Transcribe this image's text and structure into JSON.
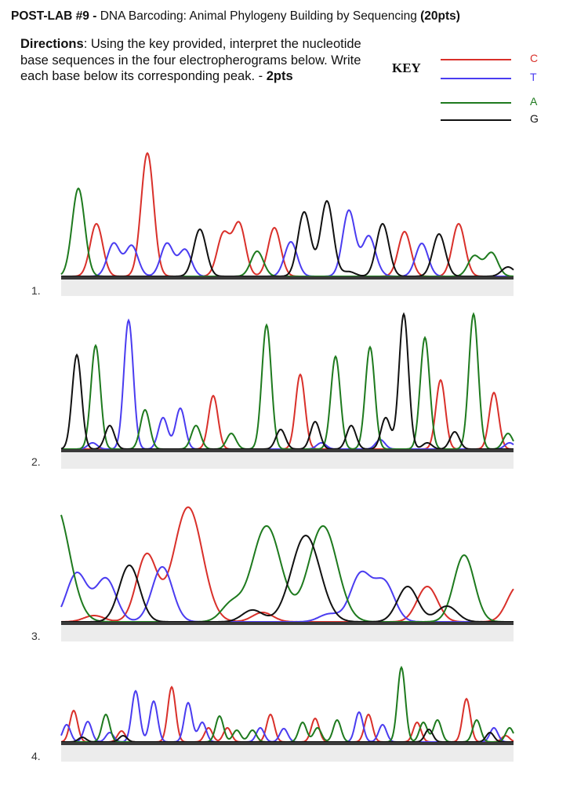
{
  "header": {
    "lab_label": "POST-LAB #9 -",
    "title": " DNA Barcoding: Animal Phylogeny Building by Sequencing ",
    "points": "(20pts)"
  },
  "directions": {
    "label": "Directions",
    "text": ": Using the key provided, interpret the nucleotide base sequences in the four electropherograms below.  Write each base below its corresponding peak. - ",
    "points": "2pts"
  },
  "key": {
    "label": "KEY",
    "items": [
      {
        "base": "C",
        "color": "#d9302a"
      },
      {
        "base": "T",
        "color": "#4a3cf0"
      },
      {
        "base": "A",
        "color": "#1e7a1e"
      },
      {
        "base": "G",
        "color": "#111111"
      }
    ]
  },
  "panels": [
    {
      "number": "1."
    },
    {
      "number": "2."
    },
    {
      "number": "3."
    },
    {
      "number": "4."
    }
  ]
}
